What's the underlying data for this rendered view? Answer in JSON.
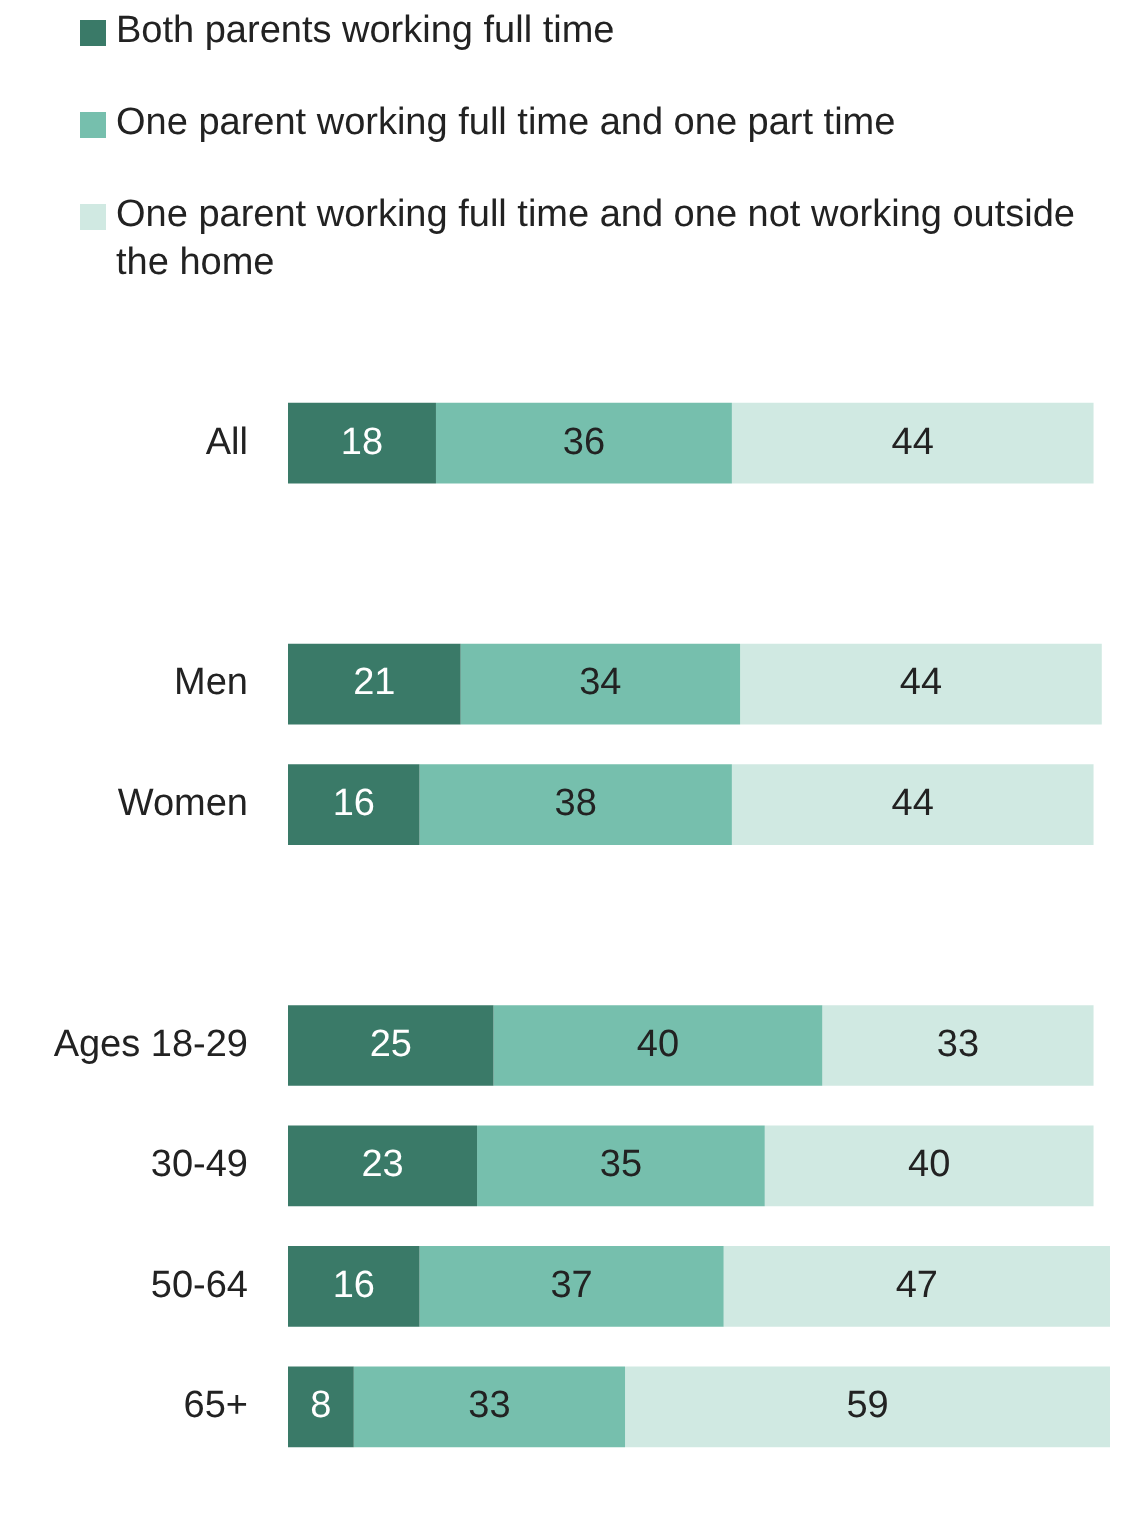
{
  "chart_data": {
    "type": "bar",
    "orientation": "horizontal",
    "stacked": true,
    "legend": "top",
    "data_labels": true,
    "tick_labels": "y",
    "xlim": [
      0,
      100
    ],
    "categories": [
      "All",
      null,
      "Men",
      "Women",
      null,
      "Ages 18-29",
      "30-49",
      "50-64",
      "65+"
    ],
    "series": [
      {
        "name": "Both parents working full time",
        "color": "#3a7a68",
        "values": [
          18,
          null,
          21,
          16,
          null,
          25,
          23,
          16,
          8
        ]
      },
      {
        "name": "One parent working full time and one part time",
        "color": "#76bfad",
        "values": [
          36,
          null,
          34,
          38,
          null,
          40,
          35,
          37,
          33
        ]
      },
      {
        "name": "One parent working full time and one not working outside the home",
        "color": "#d0e9e2",
        "values": [
          44,
          null,
          44,
          44,
          null,
          33,
          40,
          47,
          59
        ]
      }
    ]
  }
}
